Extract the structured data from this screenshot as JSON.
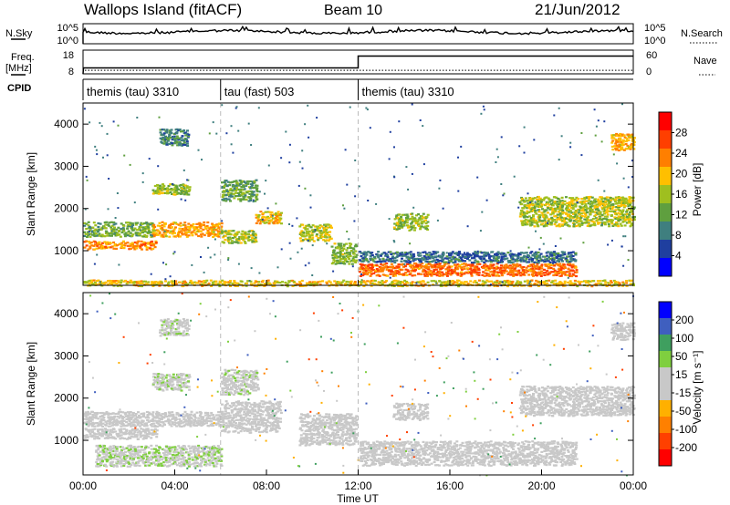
{
  "header": {
    "station": "Wallops Island (fitACF)",
    "beam": "Beam 10",
    "date": "21/Jun/2012"
  },
  "noise_panel": {
    "left_label": "N.Sky",
    "right_label": "N.Search",
    "left_ticks": [
      "10^5",
      "10^0"
    ],
    "right_ticks": [
      "10^5",
      "10^0"
    ]
  },
  "freq_panel": {
    "left_label_1": "Freq.",
    "left_label_2": "[MHz]",
    "right_label": "Nave",
    "left_ticks": [
      "18",
      "8"
    ],
    "right_ticks": [
      "60",
      "0"
    ],
    "freq_steps": [
      {
        "t": 0.0,
        "f": 8
      },
      {
        "t": 0.02,
        "f": 10.5
      },
      {
        "t": 12.0,
        "f": 10.5
      },
      {
        "t": 12.0,
        "f": 15.5
      },
      {
        "t": 24.0,
        "f": 15.5
      }
    ],
    "nave_level": 0.15
  },
  "cpid_panel": {
    "label": "CPID",
    "segments": [
      {
        "start": 0,
        "end": 6,
        "name": "themis (tau) 3310"
      },
      {
        "start": 6,
        "end": 12,
        "name": "tau (fast) 503"
      },
      {
        "start": 12,
        "end": 24,
        "name": "themis (tau) 3310"
      }
    ]
  },
  "x_axis": {
    "label": "Time UT",
    "ticks": [
      "00:00",
      "04:00",
      "08:00",
      "12:00",
      "16:00",
      "20:00",
      "00:00"
    ],
    "range_hours": [
      0,
      24
    ]
  },
  "chart_data": [
    {
      "type": "heatmap",
      "panel": "power",
      "ylabel": "Slant Range [km]",
      "ylim": [
        180,
        4500
      ],
      "yticks": [
        1000,
        2000,
        3000,
        4000
      ],
      "colorbar": {
        "label": "Power [dB]",
        "ticks": [
          "28",
          "24",
          "20",
          "16",
          "12",
          "8",
          "4"
        ],
        "range": [
          0,
          30
        ]
      },
      "bands": [
        {
          "t0": 0.0,
          "t1": 3.2,
          "r0": 1050,
          "r1": 1250,
          "v": 24
        },
        {
          "t0": 0.0,
          "t1": 3.0,
          "r0": 1350,
          "r1": 1700,
          "v": 14
        },
        {
          "t0": 3.0,
          "t1": 6.0,
          "r0": 1350,
          "r1": 1700,
          "v": 22
        },
        {
          "t0": 6.0,
          "t1": 7.5,
          "r0": 1200,
          "r1": 1500,
          "v": 17
        },
        {
          "t0": 7.5,
          "t1": 8.6,
          "r0": 1650,
          "r1": 1950,
          "v": 20
        },
        {
          "t0": 9.4,
          "t1": 10.8,
          "r0": 1250,
          "r1": 1650,
          "v": 18
        },
        {
          "t0": 10.8,
          "t1": 11.9,
          "r0": 700,
          "r1": 1200,
          "v": 15
        },
        {
          "t0": 12.0,
          "t1": 21.5,
          "r0": 420,
          "r1": 720,
          "v": 26
        },
        {
          "t0": 12.0,
          "t1": 21.5,
          "r0": 740,
          "r1": 1000,
          "v": 8
        },
        {
          "t0": 3.0,
          "t1": 4.6,
          "r0": 2350,
          "r1": 2600,
          "v": 16
        },
        {
          "t0": 6.0,
          "t1": 7.6,
          "r0": 2200,
          "r1": 2700,
          "v": 13
        },
        {
          "t0": 3.3,
          "t1": 4.6,
          "r0": 3500,
          "r1": 3900,
          "v": 10
        },
        {
          "t0": 13.5,
          "t1": 15.0,
          "r0": 1500,
          "r1": 1900,
          "v": 16
        },
        {
          "t0": 19.0,
          "t1": 24.0,
          "r0": 1600,
          "r1": 2300,
          "v": 17
        },
        {
          "t0": 23.0,
          "t1": 24.0,
          "r0": 3400,
          "r1": 3800,
          "v": 22
        },
        {
          "t0": 0.0,
          "t1": 24.0,
          "r0": 180,
          "r1": 320,
          "v": 20
        }
      ]
    },
    {
      "type": "heatmap",
      "panel": "velocity",
      "ylabel": "Slant Range [km]",
      "ylim": [
        180,
        4500
      ],
      "yticks": [
        1000,
        2000,
        3000,
        4000
      ],
      "colorbar": {
        "label": "Velocity [m s⁻¹]",
        "ticks": [
          "200",
          "100",
          "50",
          "15",
          "-15",
          "-50",
          "-100",
          "-200"
        ],
        "range": [
          -250,
          250
        ]
      },
      "bands": [
        {
          "t0": 0.0,
          "t1": 3.2,
          "r0": 1050,
          "r1": 1300,
          "v": 0
        },
        {
          "t0": 0.0,
          "t1": 6.0,
          "r0": 1350,
          "r1": 1700,
          "v": 0
        },
        {
          "t0": 6.0,
          "t1": 8.6,
          "r0": 1200,
          "r1": 1950,
          "v": 0
        },
        {
          "t0": 9.4,
          "t1": 11.9,
          "r0": 900,
          "r1": 1650,
          "v": 0
        },
        {
          "t0": 12.0,
          "t1": 21.5,
          "r0": 420,
          "r1": 1000,
          "v": 0
        },
        {
          "t0": 3.0,
          "t1": 4.6,
          "r0": 2200,
          "r1": 2600,
          "v": 40
        },
        {
          "t0": 6.0,
          "t1": 7.6,
          "r0": 2100,
          "r1": 2700,
          "v": 40
        },
        {
          "t0": 3.3,
          "t1": 4.6,
          "r0": 3500,
          "r1": 3900,
          "v": 40
        },
        {
          "t0": 13.5,
          "t1": 15.0,
          "r0": 1500,
          "r1": 1900,
          "v": 0
        },
        {
          "t0": 19.0,
          "t1": 24.0,
          "r0": 1600,
          "r1": 2300,
          "v": 0
        },
        {
          "t0": 23.0,
          "t1": 24.0,
          "r0": 3400,
          "r1": 3800,
          "v": 0
        },
        {
          "t0": 0.5,
          "t1": 6.0,
          "r0": 400,
          "r1": 900,
          "v": 45
        }
      ]
    }
  ],
  "colors": {
    "power_scale": [
      "#0000ff",
      "#1f3f9f",
      "#3f7f7f",
      "#5f9f3f",
      "#9fbf1f",
      "#ffbf00",
      "#ff7f00",
      "#ff3f00",
      "#ff0000"
    ],
    "velocity_scale": [
      "#ff0000",
      "#ff4000",
      "#ff8000",
      "#ffb000",
      "#c8c8c8",
      "#c8c8c8",
      "#7fcf3f",
      "#3f9f5f",
      "#3f5fbf",
      "#0000ff"
    ]
  }
}
